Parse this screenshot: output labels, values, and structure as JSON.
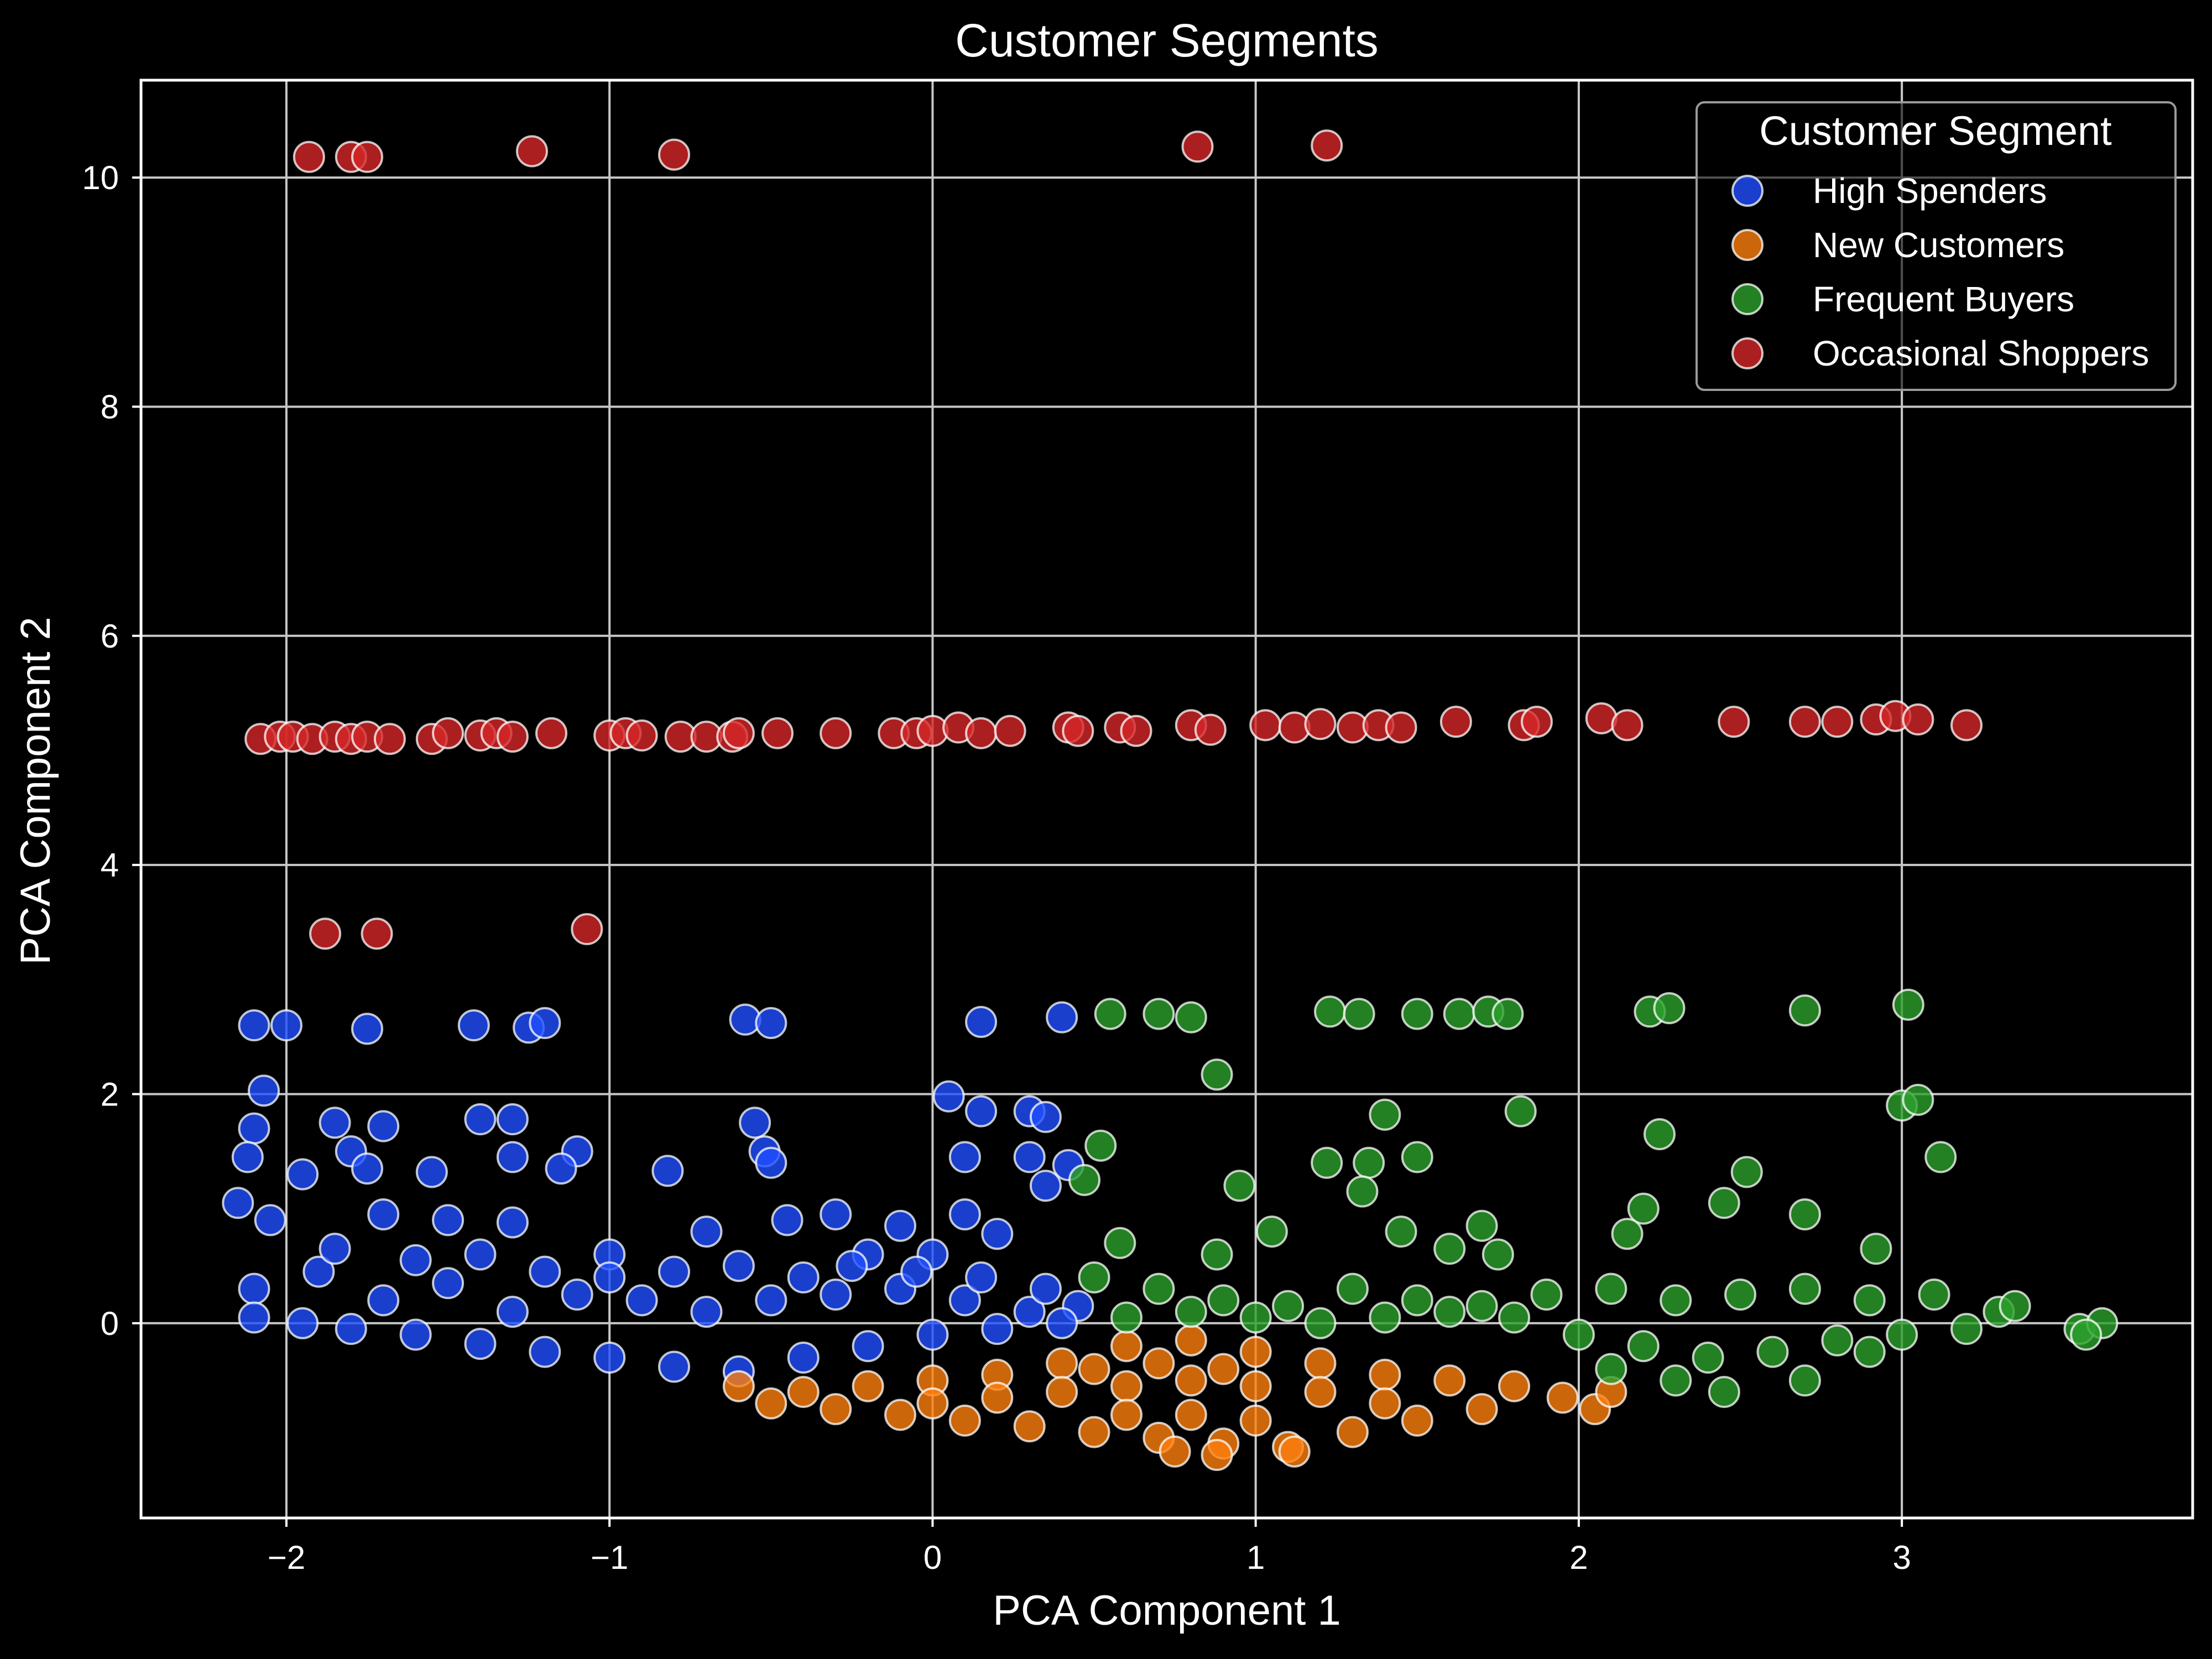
{
  "chart_data": {
    "type": "scatter",
    "title": "Customer Segments",
    "xlabel": "PCA Component 1",
    "ylabel": "PCA Component 2",
    "xlim": [
      -2.45,
      3.9
    ],
    "ylim": [
      -1.7,
      10.85
    ],
    "xticks": [
      -2,
      -1,
      0,
      1,
      2,
      3
    ],
    "xtick_labels": [
      "−2",
      "−1",
      "0",
      "1",
      "2",
      "3"
    ],
    "yticks": [
      0,
      2,
      4,
      6,
      8,
      10
    ],
    "ytick_labels": [
      "0",
      "2",
      "4",
      "6",
      "8",
      "10"
    ],
    "grid": true,
    "legend": {
      "title": "Customer Segment",
      "placement": "top-right"
    },
    "series": [
      {
        "name": "High Spenders",
        "color": "#1f4fff",
        "points": [
          [
            -2.1,
            2.6
          ],
          [
            -2.0,
            2.6
          ],
          [
            -1.75,
            2.57
          ],
          [
            -1.42,
            2.6
          ],
          [
            -1.25,
            2.58
          ],
          [
            -1.2,
            2.62
          ],
          [
            -0.58,
            2.65
          ],
          [
            -0.5,
            2.62
          ],
          [
            0.15,
            2.63
          ],
          [
            0.4,
            2.67
          ],
          [
            -2.07,
            2.03
          ],
          [
            -2.1,
            1.7
          ],
          [
            -1.85,
            1.75
          ],
          [
            -1.7,
            1.72
          ],
          [
            -1.4,
            1.78
          ],
          [
            -1.3,
            1.78
          ],
          [
            -2.12,
            1.45
          ],
          [
            -1.95,
            1.3
          ],
          [
            -1.8,
            1.5
          ],
          [
            -1.75,
            1.35
          ],
          [
            -1.55,
            1.32
          ],
          [
            -1.3,
            1.45
          ],
          [
            -1.1,
            1.5
          ],
          [
            -1.15,
            1.35
          ],
          [
            -0.82,
            1.33
          ],
          [
            -0.55,
            1.75
          ],
          [
            -0.52,
            1.5
          ],
          [
            -0.5,
            1.4
          ],
          [
            0.05,
            1.98
          ],
          [
            0.15,
            1.85
          ],
          [
            0.3,
            1.85
          ],
          [
            0.35,
            1.8
          ],
          [
            0.1,
            1.45
          ],
          [
            0.3,
            1.45
          ],
          [
            0.42,
            1.38
          ],
          [
            0.35,
            1.2
          ],
          [
            0.1,
            0.95
          ],
          [
            0.2,
            0.78
          ],
          [
            -2.15,
            1.05
          ],
          [
            -2.05,
            0.9
          ],
          [
            -1.7,
            0.95
          ],
          [
            -1.5,
            0.9
          ],
          [
            -1.3,
            0.88
          ],
          [
            -1.0,
            0.6
          ],
          [
            -0.7,
            0.8
          ],
          [
            -0.45,
            0.9
          ],
          [
            -0.3,
            0.95
          ],
          [
            -0.1,
            0.85
          ],
          [
            -0.2,
            0.6
          ],
          [
            0.0,
            0.6
          ],
          [
            -2.1,
            0.3
          ],
          [
            -1.9,
            0.45
          ],
          [
            -1.7,
            0.2
          ],
          [
            -1.5,
            0.35
          ],
          [
            -1.3,
            0.1
          ],
          [
            -1.1,
            0.25
          ],
          [
            -0.9,
            0.2
          ],
          [
            -0.7,
            0.1
          ],
          [
            -0.5,
            0.2
          ],
          [
            -0.3,
            0.25
          ],
          [
            -0.1,
            0.3
          ],
          [
            0.1,
            0.2
          ],
          [
            0.3,
            0.1
          ],
          [
            0.45,
            0.15
          ],
          [
            -2.1,
            0.05
          ],
          [
            -1.95,
            0.0
          ],
          [
            -1.8,
            -0.05
          ],
          [
            -1.6,
            -0.1
          ],
          [
            -1.4,
            -0.18
          ],
          [
            -1.2,
            -0.25
          ],
          [
            -1.0,
            -0.3
          ],
          [
            -0.8,
            -0.38
          ],
          [
            -0.6,
            -0.42
          ],
          [
            -0.4,
            -0.3
          ],
          [
            -0.2,
            -0.2
          ],
          [
            0.0,
            -0.1
          ],
          [
            0.2,
            -0.05
          ],
          [
            0.4,
            0.0
          ],
          [
            -1.85,
            0.65
          ],
          [
            -1.6,
            0.55
          ],
          [
            -1.4,
            0.6
          ],
          [
            -1.2,
            0.45
          ],
          [
            -1.0,
            0.4
          ],
          [
            -0.8,
            0.45
          ],
          [
            -0.6,
            0.5
          ],
          [
            -0.4,
            0.4
          ],
          [
            -0.25,
            0.5
          ],
          [
            -0.05,
            0.45
          ],
          [
            0.15,
            0.4
          ],
          [
            0.35,
            0.3
          ]
        ]
      },
      {
        "name": "New Customers",
        "color": "#ff7f0e",
        "points": [
          [
            -0.6,
            -0.55
          ],
          [
            -0.4,
            -0.6
          ],
          [
            -0.2,
            -0.55
          ],
          [
            0.0,
            -0.5
          ],
          [
            0.2,
            -0.45
          ],
          [
            0.4,
            -0.35
          ],
          [
            0.6,
            -0.2
          ],
          [
            0.8,
            -0.15
          ],
          [
            1.0,
            -0.25
          ],
          [
            1.2,
            -0.35
          ],
          [
            1.4,
            -0.45
          ],
          [
            1.6,
            -0.5
          ],
          [
            1.8,
            -0.55
          ],
          [
            1.95,
            -0.65
          ],
          [
            2.05,
            -0.75
          ],
          [
            2.1,
            -0.6
          ],
          [
            -0.5,
            -0.7
          ],
          [
            -0.3,
            -0.75
          ],
          [
            -0.1,
            -0.8
          ],
          [
            0.1,
            -0.85
          ],
          [
            0.3,
            -0.9
          ],
          [
            0.5,
            -0.95
          ],
          [
            0.7,
            -1.0
          ],
          [
            0.9,
            -1.05
          ],
          [
            1.1,
            -1.08
          ],
          [
            1.3,
            -0.95
          ],
          [
            1.5,
            -0.85
          ],
          [
            1.7,
            -0.75
          ],
          [
            0.0,
            -0.7
          ],
          [
            0.2,
            -0.65
          ],
          [
            0.4,
            -0.6
          ],
          [
            0.6,
            -0.55
          ],
          [
            0.8,
            -0.5
          ],
          [
            1.0,
            -0.55
          ],
          [
            1.2,
            -0.6
          ],
          [
            1.4,
            -0.7
          ],
          [
            0.6,
            -0.8
          ],
          [
            0.8,
            -0.8
          ],
          [
            1.0,
            -0.85
          ],
          [
            0.75,
            -1.12
          ],
          [
            0.88,
            -1.15
          ],
          [
            1.12,
            -1.12
          ],
          [
            0.5,
            -0.4
          ],
          [
            0.7,
            -0.35
          ],
          [
            0.9,
            -0.4
          ]
        ]
      },
      {
        "name": "Frequent Buyers",
        "color": "#2ca02c",
        "points": [
          [
            0.55,
            2.7
          ],
          [
            0.7,
            2.7
          ],
          [
            0.8,
            2.67
          ],
          [
            1.23,
            2.72
          ],
          [
            1.32,
            2.7
          ],
          [
            1.5,
            2.7
          ],
          [
            1.63,
            2.7
          ],
          [
            1.72,
            2.72
          ],
          [
            1.78,
            2.7
          ],
          [
            2.22,
            2.72
          ],
          [
            2.28,
            2.75
          ],
          [
            2.7,
            2.73
          ],
          [
            3.02,
            2.78
          ],
          [
            0.88,
            2.17
          ],
          [
            1.4,
            1.82
          ],
          [
            1.82,
            1.85
          ],
          [
            3.0,
            1.9
          ],
          [
            3.05,
            1.95
          ],
          [
            0.52,
            1.55
          ],
          [
            0.47,
            1.25
          ],
          [
            0.95,
            1.2
          ],
          [
            1.22,
            1.4
          ],
          [
            1.35,
            1.4
          ],
          [
            1.5,
            1.45
          ],
          [
            2.25,
            1.65
          ],
          [
            2.52,
            1.32
          ],
          [
            3.12,
            1.45
          ],
          [
            1.33,
            1.15
          ],
          [
            2.2,
            1.0
          ],
          [
            0.58,
            0.7
          ],
          [
            0.88,
            0.6
          ],
          [
            1.05,
            0.8
          ],
          [
            1.45,
            0.8
          ],
          [
            1.6,
            0.65
          ],
          [
            1.7,
            0.85
          ],
          [
            1.75,
            0.6
          ],
          [
            2.15,
            0.78
          ],
          [
            2.45,
            1.05
          ],
          [
            2.7,
            0.95
          ],
          [
            2.92,
            0.65
          ],
          [
            0.5,
            0.4
          ],
          [
            0.7,
            0.3
          ],
          [
            0.9,
            0.2
          ],
          [
            1.1,
            0.15
          ],
          [
            1.3,
            0.3
          ],
          [
            1.5,
            0.2
          ],
          [
            1.7,
            0.15
          ],
          [
            1.9,
            0.25
          ],
          [
            2.1,
            0.3
          ],
          [
            2.3,
            0.2
          ],
          [
            2.5,
            0.25
          ],
          [
            2.7,
            0.3
          ],
          [
            2.9,
            0.2
          ],
          [
            3.1,
            0.25
          ],
          [
            3.3,
            0.1
          ],
          [
            3.35,
            0.15
          ],
          [
            0.6,
            0.05
          ],
          [
            0.8,
            0.1
          ],
          [
            1.0,
            0.05
          ],
          [
            1.2,
            0.0
          ],
          [
            1.4,
            0.05
          ],
          [
            1.6,
            0.1
          ],
          [
            1.8,
            0.05
          ],
          [
            2.0,
            -0.1
          ],
          [
            2.2,
            -0.2
          ],
          [
            2.4,
            -0.3
          ],
          [
            2.6,
            -0.25
          ],
          [
            2.8,
            -0.15
          ],
          [
            3.0,
            -0.1
          ],
          [
            3.2,
            -0.05
          ],
          [
            2.45,
            -0.6
          ],
          [
            2.7,
            -0.5
          ],
          [
            2.9,
            -0.25
          ],
          [
            3.55,
            -0.05
          ],
          [
            3.62,
            0.0
          ],
          [
            3.57,
            -0.1
          ],
          [
            2.3,
            -0.5
          ],
          [
            2.1,
            -0.4
          ]
        ]
      },
      {
        "name": "Occasional Shoppers",
        "color": "#d62728",
        "points": [
          [
            -1.93,
            10.18
          ],
          [
            -1.8,
            10.18
          ],
          [
            -1.75,
            10.18
          ],
          [
            -1.24,
            10.23
          ],
          [
            -0.8,
            10.2
          ],
          [
            0.82,
            10.27
          ],
          [
            1.22,
            10.28
          ],
          [
            -1.88,
            3.4
          ],
          [
            -1.72,
            3.4
          ],
          [
            -1.07,
            3.44
          ],
          [
            -2.08,
            5.1
          ],
          [
            -2.02,
            5.12
          ],
          [
            -1.98,
            5.12
          ],
          [
            -1.92,
            5.1
          ],
          [
            -1.85,
            5.12
          ],
          [
            -1.8,
            5.1
          ],
          [
            -1.75,
            5.12
          ],
          [
            -1.68,
            5.1
          ],
          [
            -1.55,
            5.1
          ],
          [
            -1.5,
            5.15
          ],
          [
            -1.4,
            5.13
          ],
          [
            -1.35,
            5.15
          ],
          [
            -1.3,
            5.12
          ],
          [
            -1.18,
            5.15
          ],
          [
            -1.0,
            5.13
          ],
          [
            -0.95,
            5.15
          ],
          [
            -0.9,
            5.13
          ],
          [
            -0.78,
            5.12
          ],
          [
            -0.7,
            5.12
          ],
          [
            -0.62,
            5.12
          ],
          [
            -0.6,
            5.15
          ],
          [
            -0.48,
            5.15
          ],
          [
            -0.3,
            5.15
          ],
          [
            -0.12,
            5.15
          ],
          [
            -0.05,
            5.15
          ],
          [
            0.0,
            5.17
          ],
          [
            0.08,
            5.2
          ],
          [
            0.15,
            5.15
          ],
          [
            0.24,
            5.17
          ],
          [
            0.42,
            5.2
          ],
          [
            0.45,
            5.17
          ],
          [
            0.58,
            5.2
          ],
          [
            0.63,
            5.17
          ],
          [
            0.8,
            5.22
          ],
          [
            0.86,
            5.18
          ],
          [
            1.03,
            5.22
          ],
          [
            1.12,
            5.2
          ],
          [
            1.2,
            5.23
          ],
          [
            1.3,
            5.2
          ],
          [
            1.38,
            5.22
          ],
          [
            1.45,
            5.2
          ],
          [
            1.62,
            5.25
          ],
          [
            1.83,
            5.22
          ],
          [
            1.87,
            5.25
          ],
          [
            2.07,
            5.28
          ],
          [
            2.15,
            5.22
          ],
          [
            2.48,
            5.25
          ],
          [
            2.7,
            5.25
          ],
          [
            2.8,
            5.25
          ],
          [
            2.92,
            5.27
          ],
          [
            2.98,
            5.3
          ],
          [
            3.05,
            5.27
          ],
          [
            3.2,
            5.22
          ]
        ]
      }
    ]
  },
  "colors": {
    "background": "#000000",
    "grid": "#c8c8c8",
    "frame": "#ffffff",
    "marker_edge": "#ffffff"
  }
}
